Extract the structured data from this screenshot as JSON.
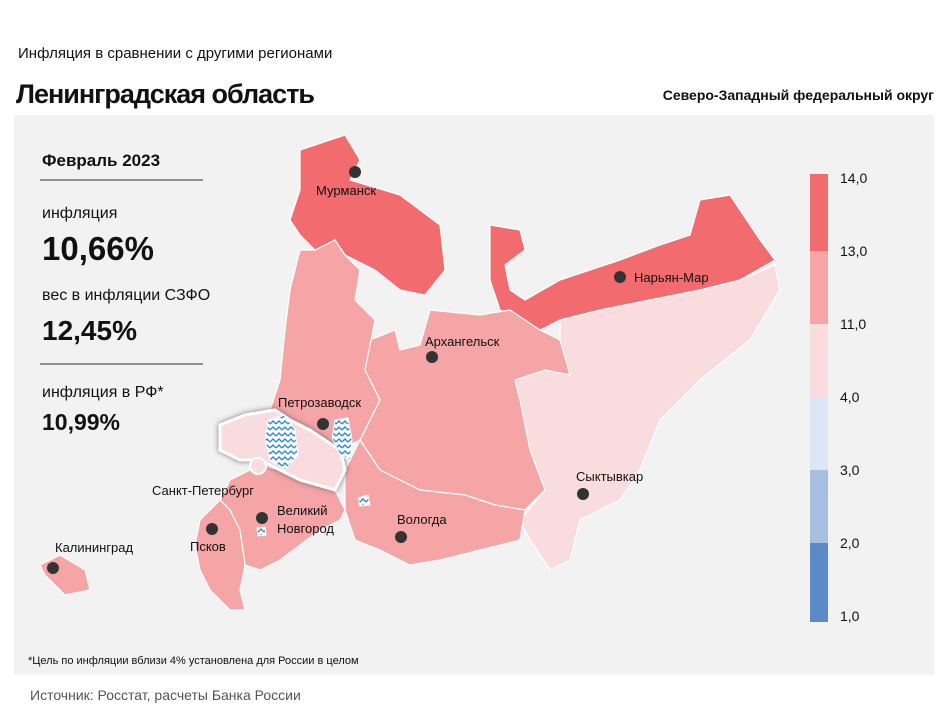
{
  "header": {
    "subtitle": "Инфляция в сравнении с другими регионами",
    "title": "Ленинградская область",
    "district": "Северо-Западный федеральный округ"
  },
  "panel": {
    "period": "Февраль 2023",
    "items": [
      {
        "label": "инфляция",
        "value": "10,66%"
      },
      {
        "label": "вес в инфляции СЗФО",
        "value": "12,45%"
      },
      {
        "label": "инфляция в РФ*",
        "value": "10,99%"
      }
    ]
  },
  "map": {
    "cities": [
      {
        "name": "Мурманск"
      },
      {
        "name": "Нарьян-Мар"
      },
      {
        "name": "Архангельск"
      },
      {
        "name": "Петрозаводск"
      },
      {
        "name": "Сыктывкар"
      },
      {
        "name": "Санкт-Петербург"
      },
      {
        "name": "Вологда"
      },
      {
        "name": "Псков"
      },
      {
        "name": "Калининград"
      },
      {
        "name_lines": [
          "Великий",
          "Новгород"
        ]
      }
    ]
  },
  "legend": {
    "ticks": [
      {
        "value": 14,
        "label": "14,0"
      },
      {
        "value": 13,
        "label": "13,0"
      },
      {
        "value": 11,
        "label": "11,0"
      },
      {
        "value": 4,
        "label": "4,0"
      },
      {
        "value": 3,
        "label": "3,0"
      },
      {
        "value": 2,
        "label": "2,0"
      },
      {
        "value": 1,
        "label": "1,0"
      }
    ],
    "colors": [
      "#f26b6e",
      "#f6a5a7",
      "#f9dcdd",
      "#dde6f4",
      "#a7bfe0",
      "#5b8ac6"
    ]
  },
  "footnote": "*Цель по инфляции вблизи 4% установлена для России в целом",
  "source": "Источник: Росстат, расчеты Банка России"
}
